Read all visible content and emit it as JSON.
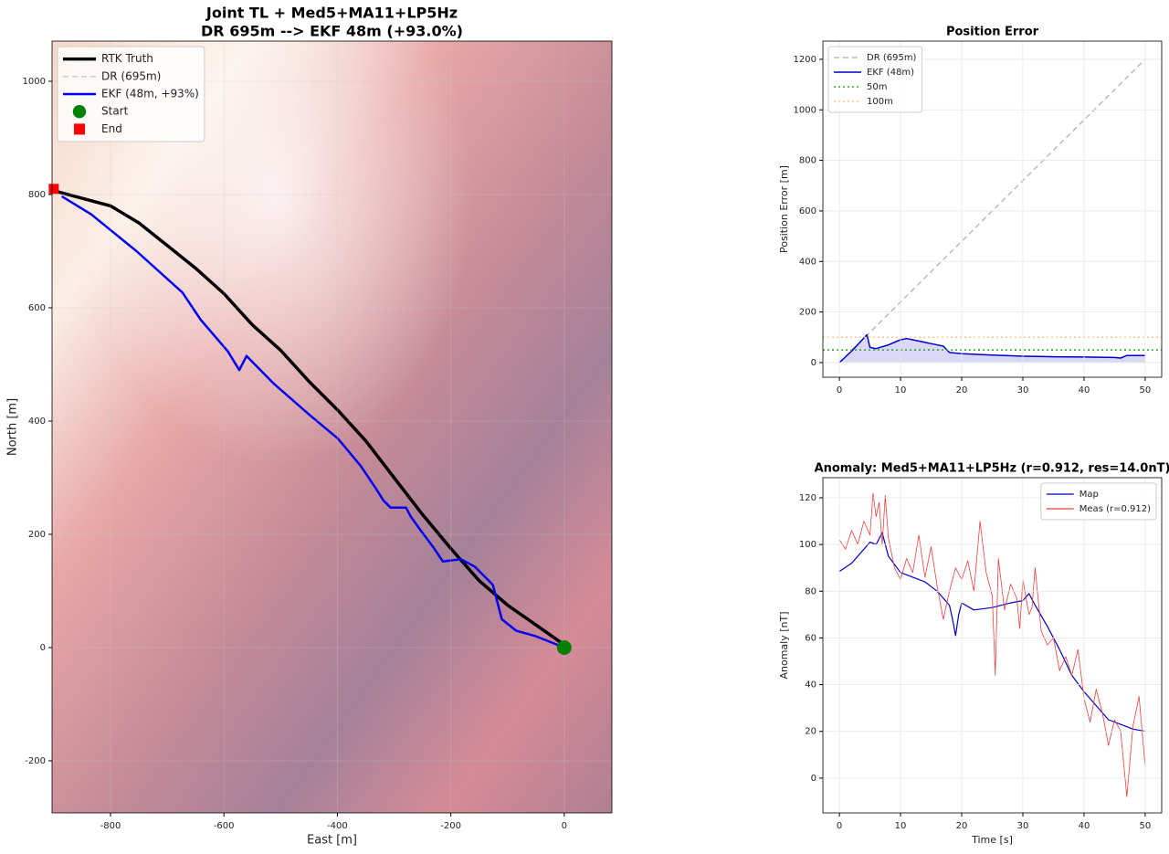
{
  "chart_data": [
    {
      "type": "line",
      "title": "Joint TL + Med5+MA11+LP5Hz",
      "subtitle": "DR 695m --> EKF 48m (+93.0%)",
      "xlabel": "East [m]",
      "ylabel": "North [m]",
      "xlim": [
        -903,
        84
      ],
      "ylim": [
        -292,
        1071
      ],
      "xticks": [
        -800,
        -600,
        -400,
        -200,
        0
      ],
      "yticks": [
        -200,
        0,
        200,
        400,
        600,
        800,
        1000
      ],
      "grid": true,
      "legend": "upper left",
      "series": [
        {
          "name": "RTK Truth",
          "color": "#000000",
          "linestyle": "solid",
          "x": [
            0,
            -50,
            -100,
            -150,
            -200,
            -250,
            -300,
            -350,
            -400,
            -450,
            -500,
            -550,
            -600,
            -650,
            -700,
            -750,
            -800,
            -893
          ],
          "values": [
            5,
            40,
            75,
            118,
            175,
            235,
            300,
            365,
            420,
            470,
            525,
            570,
            625,
            670,
            710,
            750,
            780,
            805
          ]
        },
        {
          "name": "DR (695m)",
          "color": "#cccccc",
          "linestyle": "dashed",
          "x": [],
          "values": []
        },
        {
          "name": "EKF (48m, +93%)",
          "color": "#0000ee",
          "linestyle": "solid",
          "x": [
            0,
            -20,
            -50,
            -85,
            -110,
            -126,
            -158,
            -182,
            -214,
            -230,
            -254,
            -271,
            -279,
            -306,
            -319,
            -332,
            -359,
            -399,
            -448,
            -512,
            -560,
            -573,
            -593,
            -641,
            -673,
            -754,
            -834,
            -886
          ],
          "values": [
            0,
            8,
            20,
            30,
            50,
            111,
            143,
            156,
            152,
            176,
            208,
            232,
            247,
            247,
            260,
            281,
            321,
            369,
            410,
            466,
            515,
            490,
            523,
            579,
            627,
            700,
            765,
            797
          ]
        },
        {
          "name": "Start",
          "color": "#008000",
          "marker": "circle",
          "x": [
            0
          ],
          "values": [
            0
          ]
        },
        {
          "name": "End",
          "color": "#ff0000",
          "marker": "square",
          "x": [
            -900
          ],
          "values": [
            810
          ]
        }
      ]
    },
    {
      "type": "line",
      "title": "Position Error",
      "ylabel": "Position Error [m]",
      "xlim": [
        -2.7,
        52.7
      ],
      "ylim": [
        -58,
        1272
      ],
      "xticks": [
        0,
        10,
        20,
        30,
        40,
        50
      ],
      "yticks": [
        0,
        200,
        400,
        600,
        800,
        1000,
        1200
      ],
      "grid": true,
      "legend": "upper left",
      "series": [
        {
          "name": "DR (695m)",
          "color": "#bbbbbb",
          "linestyle": "dashed",
          "x": [
            0,
            50
          ],
          "values": [
            0,
            1200
          ]
        },
        {
          "name": "EKF (48m)",
          "color": "#0000cc",
          "linestyle": "solid",
          "fill": true,
          "x": [
            0,
            2,
            4.5,
            5,
            6,
            8,
            10,
            11,
            13,
            15,
            17,
            18,
            20,
            25,
            30,
            35,
            40,
            45,
            46,
            47,
            50
          ],
          "values": [
            0,
            45,
            110,
            60,
            55,
            70,
            90,
            95,
            85,
            75,
            65,
            40,
            35,
            30,
            25,
            23,
            22,
            20,
            18,
            28,
            28
          ]
        },
        {
          "name": "50m",
          "color": "#2ca02c",
          "linestyle": "dotted",
          "hline": 50
        },
        {
          "name": "100m",
          "color": "#ffbb78",
          "linestyle": "dotted",
          "hline": 100
        }
      ]
    },
    {
      "type": "line",
      "title": "Anomaly: Med5+MA11+LP5Hz (r=0.912, res=14.0nT)",
      "xlabel": "Time [s]",
      "ylabel": "Anomaly [nT]",
      "xlim": [
        -2.7,
        52.7
      ],
      "ylim": [
        -14.9,
        128.6
      ],
      "xticks": [
        0,
        10,
        20,
        30,
        40,
        50
      ],
      "yticks": [
        0,
        20,
        40,
        60,
        80,
        100,
        120
      ],
      "grid": true,
      "legend": "upper right",
      "series": [
        {
          "name": "Map",
          "color": "#0000cc",
          "linestyle": "solid",
          "x": [
            0,
            2,
            4,
            5,
            6,
            7,
            8,
            10,
            12,
            14,
            16,
            17,
            18,
            18.5,
            19,
            19.5,
            20,
            22,
            25,
            28,
            30,
            31,
            32,
            34,
            36,
            38,
            40,
            42,
            44,
            46,
            48,
            50
          ],
          "values": [
            88.5,
            92,
            98,
            101,
            100,
            105,
            95,
            88,
            86,
            84,
            80,
            77,
            74,
            68,
            61,
            70,
            75,
            72,
            73,
            75,
            76,
            79,
            74,
            65,
            55,
            44,
            37,
            31,
            25,
            23,
            21,
            20
          ]
        },
        {
          "name": "Meas (r=0.912)",
          "color": "#e8403e",
          "linestyle": "solid",
          "x": [
            0,
            1,
            2,
            3,
            4,
            5,
            5.5,
            6,
            6.5,
            7,
            7.5,
            8,
            9,
            10,
            11,
            12,
            13,
            14,
            15,
            16,
            17,
            18,
            19,
            20,
            21,
            22,
            23,
            24,
            25,
            25.5,
            26,
            27,
            28,
            29,
            29.5,
            30,
            31,
            31.5,
            32,
            33,
            34,
            35,
            36,
            37,
            38,
            39,
            40,
            41,
            42,
            43,
            44,
            45,
            46,
            47,
            48,
            49,
            50
          ],
          "values": [
            102,
            98,
            106,
            100,
            110,
            104,
            122,
            112,
            118,
            100,
            121,
            103,
            90,
            85,
            94,
            88,
            104,
            86,
            99,
            82,
            68,
            80,
            90,
            85,
            93,
            80,
            110,
            88,
            78,
            44,
            94,
            72,
            83,
            77,
            64,
            85,
            70,
            73,
            90,
            63,
            57,
            60,
            46,
            52,
            44,
            55,
            34,
            24,
            38,
            28,
            14,
            25,
            20,
            -8,
            22,
            35,
            5
          ]
        }
      ]
    }
  ]
}
